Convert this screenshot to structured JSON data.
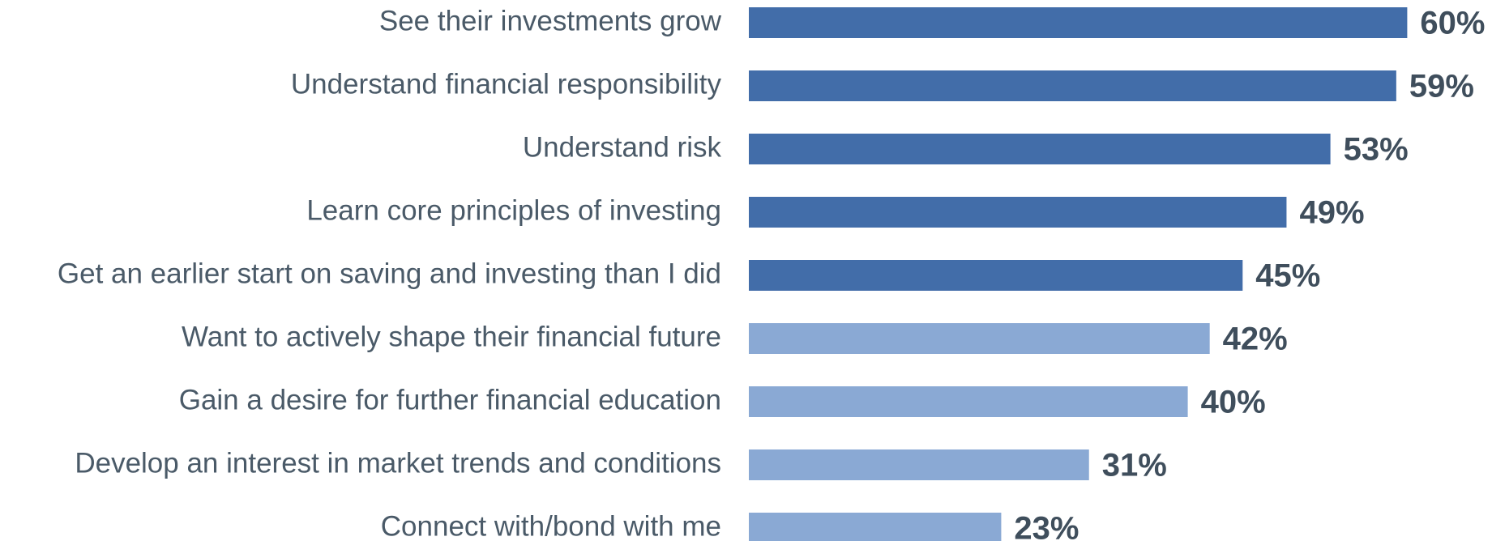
{
  "chart_data": {
    "type": "bar",
    "orientation": "horizontal",
    "categories": [
      "See their investments grow",
      "Understand financial responsibility",
      "Understand risk",
      "Learn core principles of investing",
      "Get an earlier start on saving and investing than I did",
      "Want to actively shape their financial future",
      "Gain a desire for further financial education",
      "Develop an interest in market trends and conditions",
      "Connect with/bond with me"
    ],
    "values": [
      60,
      59,
      53,
      49,
      45,
      42,
      40,
      31,
      23
    ],
    "value_labels": [
      "60%",
      "59%",
      "53%",
      "49%",
      "45%",
      "42%",
      "40%",
      "31%",
      "23%"
    ],
    "colors": [
      "#426da9",
      "#426da9",
      "#426da9",
      "#426da9",
      "#426da9",
      "#8aa9d4",
      "#8aa9d4",
      "#8aa9d4",
      "#8aa9d4"
    ]
  }
}
